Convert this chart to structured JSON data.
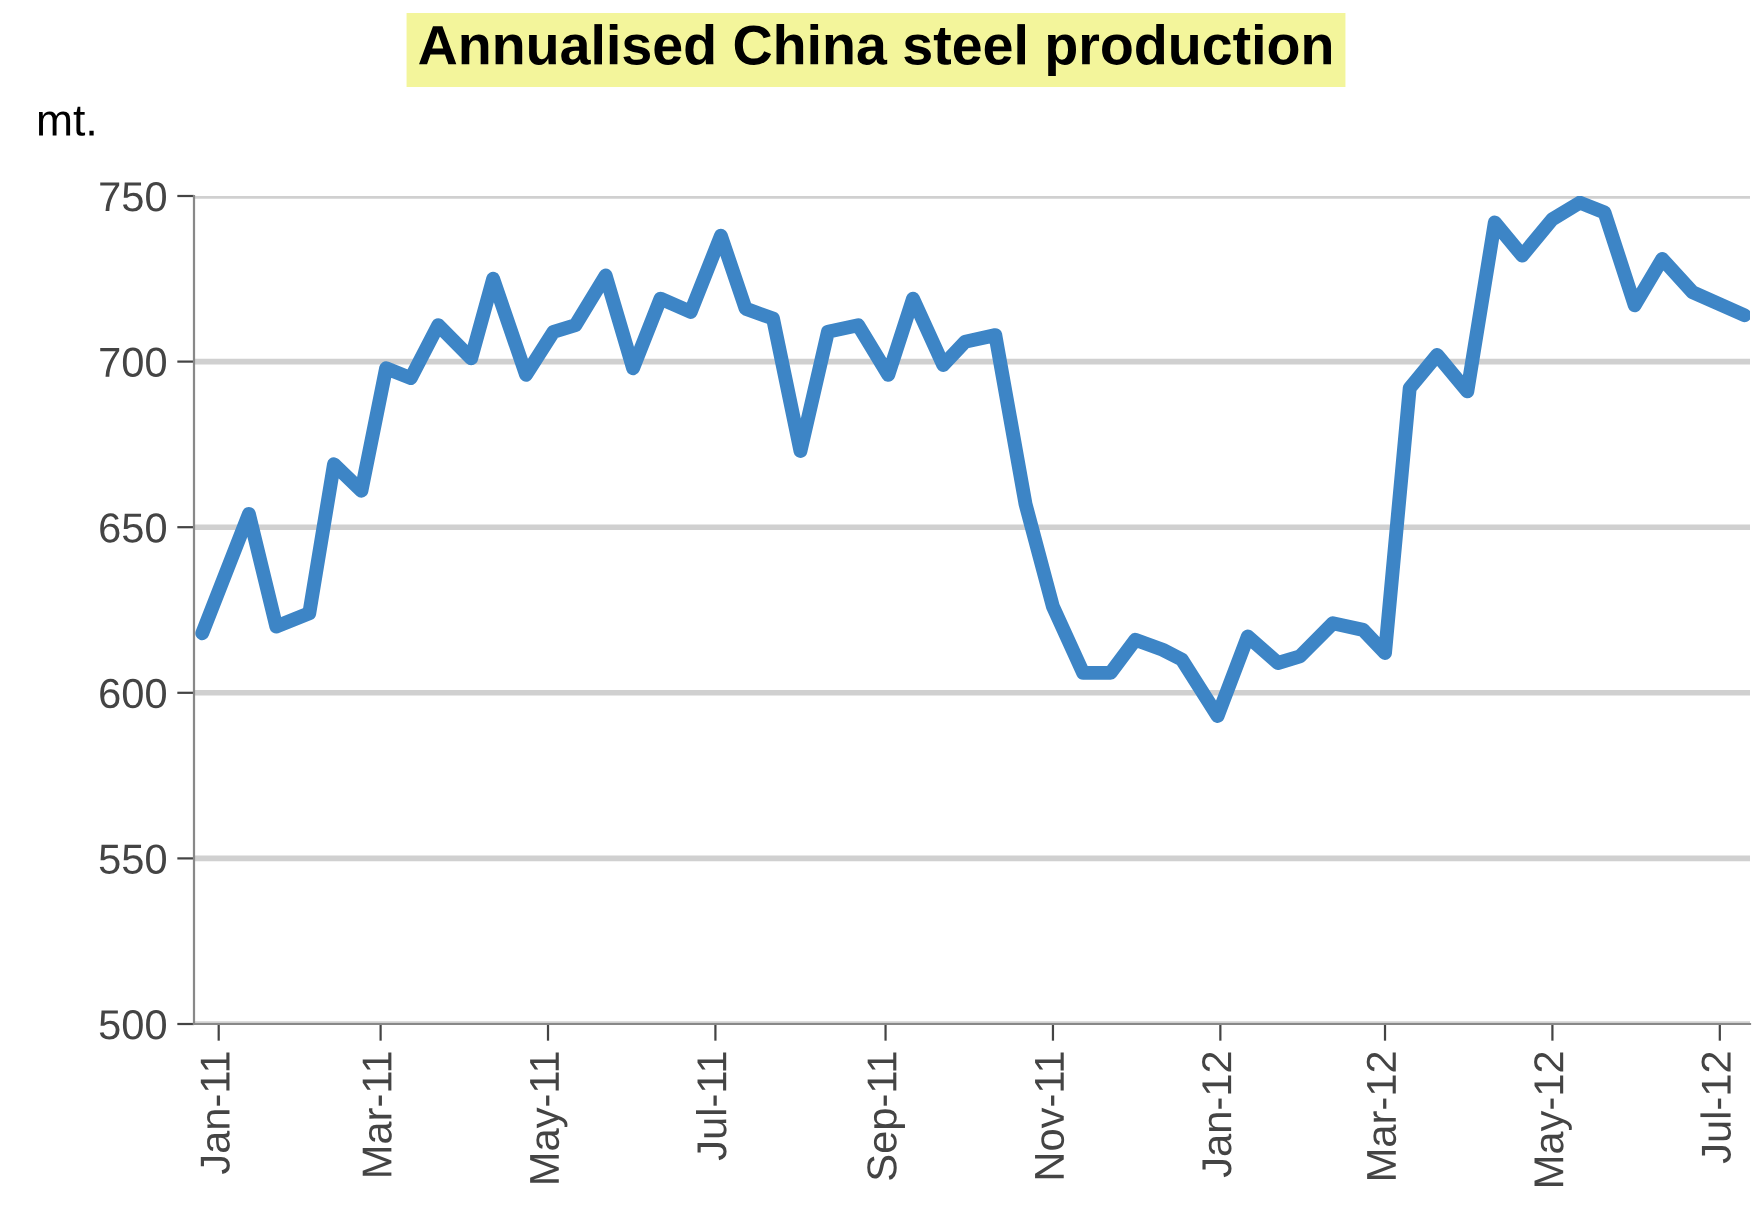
{
  "chart_data": {
    "type": "line",
    "title": "Annualised China steel production",
    "ylabel": "mt.",
    "x": [
      "2010-12-26",
      "2011-01-12",
      "2011-01-22",
      "2011-02-03",
      "2011-02-12",
      "2011-02-22",
      "2011-03-03",
      "2011-03-12",
      "2011-03-22",
      "2011-04-03",
      "2011-04-11",
      "2011-04-23",
      "2011-05-03",
      "2011-05-11",
      "2011-05-22",
      "2011-06-01",
      "2011-06-11",
      "2011-06-22",
      "2011-07-03",
      "2011-07-12",
      "2011-07-22",
      "2011-08-01",
      "2011-08-11",
      "2011-08-22",
      "2011-09-02",
      "2011-09-11",
      "2011-09-22",
      "2011-09-30",
      "2011-10-11",
      "2011-10-22",
      "2011-11-01",
      "2011-11-12",
      "2011-11-22",
      "2011-12-01",
      "2011-12-11",
      "2011-12-18",
      "2011-12-31",
      "2012-01-11",
      "2012-01-22",
      "2012-01-30",
      "2012-02-11",
      "2012-02-22",
      "2012-03-01",
      "2012-03-10",
      "2012-03-20",
      "2012-03-31",
      "2012-04-10",
      "2012-04-20",
      "2012-05-01",
      "2012-05-11",
      "2012-05-20",
      "2012-05-31",
      "2012-06-10",
      "2012-06-21",
      "2012-07-10"
    ],
    "series": [
      {
        "color": "#3d85c6",
        "values": [
          618,
          654,
          620,
          624,
          669,
          661,
          698,
          695,
          711,
          701,
          725,
          696,
          709,
          711,
          726,
          698,
          719,
          715,
          738,
          716,
          713,
          673,
          709,
          711,
          696,
          719,
          699,
          706,
          708,
          657,
          626,
          606,
          606,
          616,
          613,
          610,
          593,
          617,
          609,
          611,
          621,
          619,
          612,
          692,
          702,
          691,
          742,
          732,
          743,
          748,
          745,
          717,
          731,
          721,
          714
        ]
      }
    ],
    "xlim": [
      "2010-12-23",
      "2012-07-12"
    ],
    "xticks": [
      {
        "value": "2011-01-01",
        "label": "Jan-11"
      },
      {
        "value": "2011-03-01",
        "label": "Mar-11"
      },
      {
        "value": "2011-05-01",
        "label": "May-11"
      },
      {
        "value": "2011-07-01",
        "label": "Jul-11"
      },
      {
        "value": "2011-09-01",
        "label": "Sep-11"
      },
      {
        "value": "2011-11-01",
        "label": "Nov-11"
      },
      {
        "value": "2012-01-01",
        "label": "Jan-12"
      },
      {
        "value": "2012-03-01",
        "label": "Mar-12"
      },
      {
        "value": "2012-05-01",
        "label": "May-12"
      },
      {
        "value": "2012-07-01",
        "label": "Jul-12"
      }
    ],
    "ylim": [
      500,
      750
    ],
    "yticks": [
      500,
      550,
      600,
      650,
      700,
      750
    ],
    "grid": "y",
    "marker": "none",
    "line_style": "solid"
  }
}
